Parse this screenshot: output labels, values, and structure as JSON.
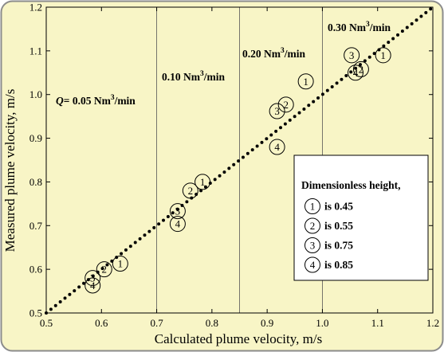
{
  "colors": {
    "background": "#f8f5c6",
    "border": "#8c8c8c",
    "axis": "#000000",
    "points": "#000000"
  },
  "chart_data": {
    "type": "scatter",
    "xlabel": "Calculated plume velocity, m/s",
    "ylabel": "Measured plume velocity, m/s",
    "xlim": [
      0.5,
      1.2
    ],
    "ylim": [
      0.5,
      1.2
    ],
    "xticks": [
      "0.5",
      "0.6",
      "0.7",
      "0.8",
      "0.9",
      "1.0",
      "1.1",
      "1.2"
    ],
    "yticks": [
      "0.5",
      "0.6",
      "0.7",
      "0.8",
      "0.9",
      "1.0",
      "1.1",
      "1.2"
    ],
    "x_tick_values": [
      0.5,
      0.6,
      0.7,
      0.8,
      0.9,
      1.0,
      1.1,
      1.2
    ],
    "y_tick_values": [
      0.5,
      0.6,
      0.7,
      0.8,
      0.9,
      1.0,
      1.1,
      1.2
    ],
    "reference_line": {
      "from": [
        0.5,
        0.5
      ],
      "to": [
        1.2,
        1.2
      ],
      "style": "dotted"
    },
    "region_dividers_x": [
      0.7,
      0.85,
      1.0
    ],
    "region_labels": [
      {
        "prefix": "Q",
        "text": "= 0.05 Nm",
        "sup": "3",
        "suffix": "/min"
      },
      {
        "prefix": "",
        "text": "0.10 Nm",
        "sup": "3",
        "suffix": "/min"
      },
      {
        "prefix": "",
        "text": "0.20 Nm",
        "sup": "3",
        "suffix": "/min"
      },
      {
        "prefix": "",
        "text": "0.30 Nm",
        "sup": "3",
        "suffix": "/min"
      }
    ],
    "legend": {
      "title": "Dimensionless height,",
      "items": [
        {
          "marker": "1",
          "label": "is 0.45"
        },
        {
          "marker": "2",
          "label": "is 0.55"
        },
        {
          "marker": "3",
          "label": "is 0.75"
        },
        {
          "marker": "4",
          "label": "is 0.85"
        }
      ]
    },
    "points": [
      {
        "marker": "1",
        "x": 0.634,
        "y": 0.613
      },
      {
        "marker": "2",
        "x": 0.605,
        "y": 0.6
      },
      {
        "marker": "3",
        "x": 0.584,
        "y": 0.58
      },
      {
        "marker": "4",
        "x": 0.584,
        "y": 0.563
      },
      {
        "marker": "1",
        "x": 0.783,
        "y": 0.8
      },
      {
        "marker": "2",
        "x": 0.761,
        "y": 0.78
      },
      {
        "marker": "3",
        "x": 0.738,
        "y": 0.733
      },
      {
        "marker": "4",
        "x": 0.738,
        "y": 0.704
      },
      {
        "marker": "1",
        "x": 0.97,
        "y": 1.03
      },
      {
        "marker": "2",
        "x": 0.934,
        "y": 0.977
      },
      {
        "marker": "3",
        "x": 0.918,
        "y": 0.962
      },
      {
        "marker": "4",
        "x": 0.918,
        "y": 0.88
      },
      {
        "marker": "1",
        "x": 1.11,
        "y": 1.09
      },
      {
        "marker": "2",
        "x": 1.07,
        "y": 1.058
      },
      {
        "marker": "3",
        "x": 1.053,
        "y": 1.09
      },
      {
        "marker": "4",
        "x": 1.06,
        "y": 1.05
      }
    ]
  }
}
